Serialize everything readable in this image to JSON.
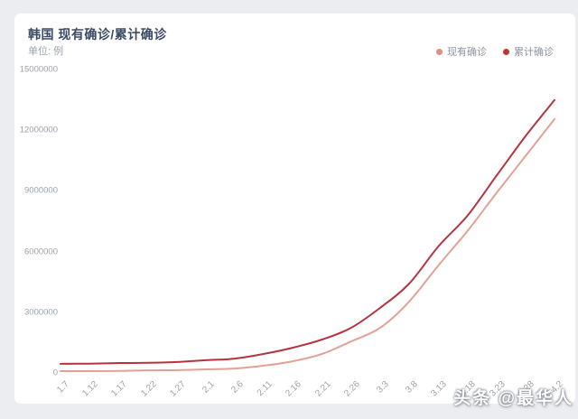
{
  "page": {
    "background": "#ebedf0"
  },
  "card": {
    "background": "#ffffff"
  },
  "header": {
    "title": "韩国 现有确诊/累计确诊",
    "unit_label": "单位: 例"
  },
  "legend": {
    "items": [
      {
        "label": "现有确诊",
        "color": "#dd9082"
      },
      {
        "label": "累计确诊",
        "color": "#c23430"
      }
    ]
  },
  "watermark": {
    "text": "头条 @最华人"
  },
  "chart_data": {
    "type": "line",
    "title": "韩国 现有确诊/累计确诊",
    "unit": "例",
    "categories": [
      "1.7",
      "1.12",
      "1.17",
      "1.22",
      "1.27",
      "2.1",
      "2.6",
      "2.11",
      "2.16",
      "2.21",
      "2.26",
      "3.3",
      "3.8",
      "3.13",
      "3.18",
      "3.23",
      "3.28",
      "4.2"
    ],
    "series": [
      {
        "name": "现有确诊",
        "color": "#e2a096",
        "values": [
          90000,
          90000,
          100000,
          130000,
          140000,
          180000,
          220000,
          360000,
          580000,
          940000,
          1560000,
          2230000,
          3530000,
          5310000,
          7010000,
          8890000,
          10720000,
          12550000
        ]
      },
      {
        "name": "累计确诊",
        "color": "#b5333e",
        "values": [
          450000,
          460000,
          490000,
          500000,
          540000,
          630000,
          710000,
          940000,
          1250000,
          1650000,
          2230000,
          3220000,
          4420000,
          6250000,
          7770000,
          9740000,
          11700000,
          13490000
        ]
      }
    ],
    "ylim": [
      0,
      15000000
    ],
    "yticks": [
      0,
      3000000,
      6000000,
      9000000,
      12000000,
      15000000
    ],
    "grid": false,
    "legend_position": "top-right",
    "x_label_rotate": 45
  }
}
